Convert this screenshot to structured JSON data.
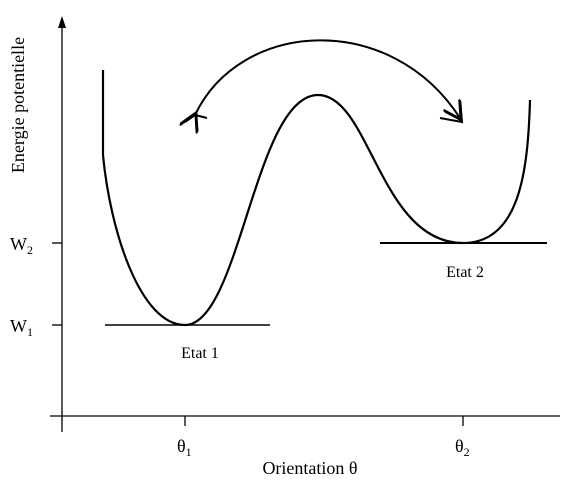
{
  "axes": {
    "y_label": "Energie potentielle",
    "x_label": "Orientation θ"
  },
  "levels": [
    {
      "symbol": "W",
      "subscript": "2"
    },
    {
      "symbol": "W",
      "subscript": "1"
    }
  ],
  "orientations": [
    {
      "symbol": "θ",
      "subscript": "1"
    },
    {
      "symbol": "θ",
      "subscript": "2"
    }
  ],
  "states": [
    "Etat 1",
    "Etat 2"
  ]
}
